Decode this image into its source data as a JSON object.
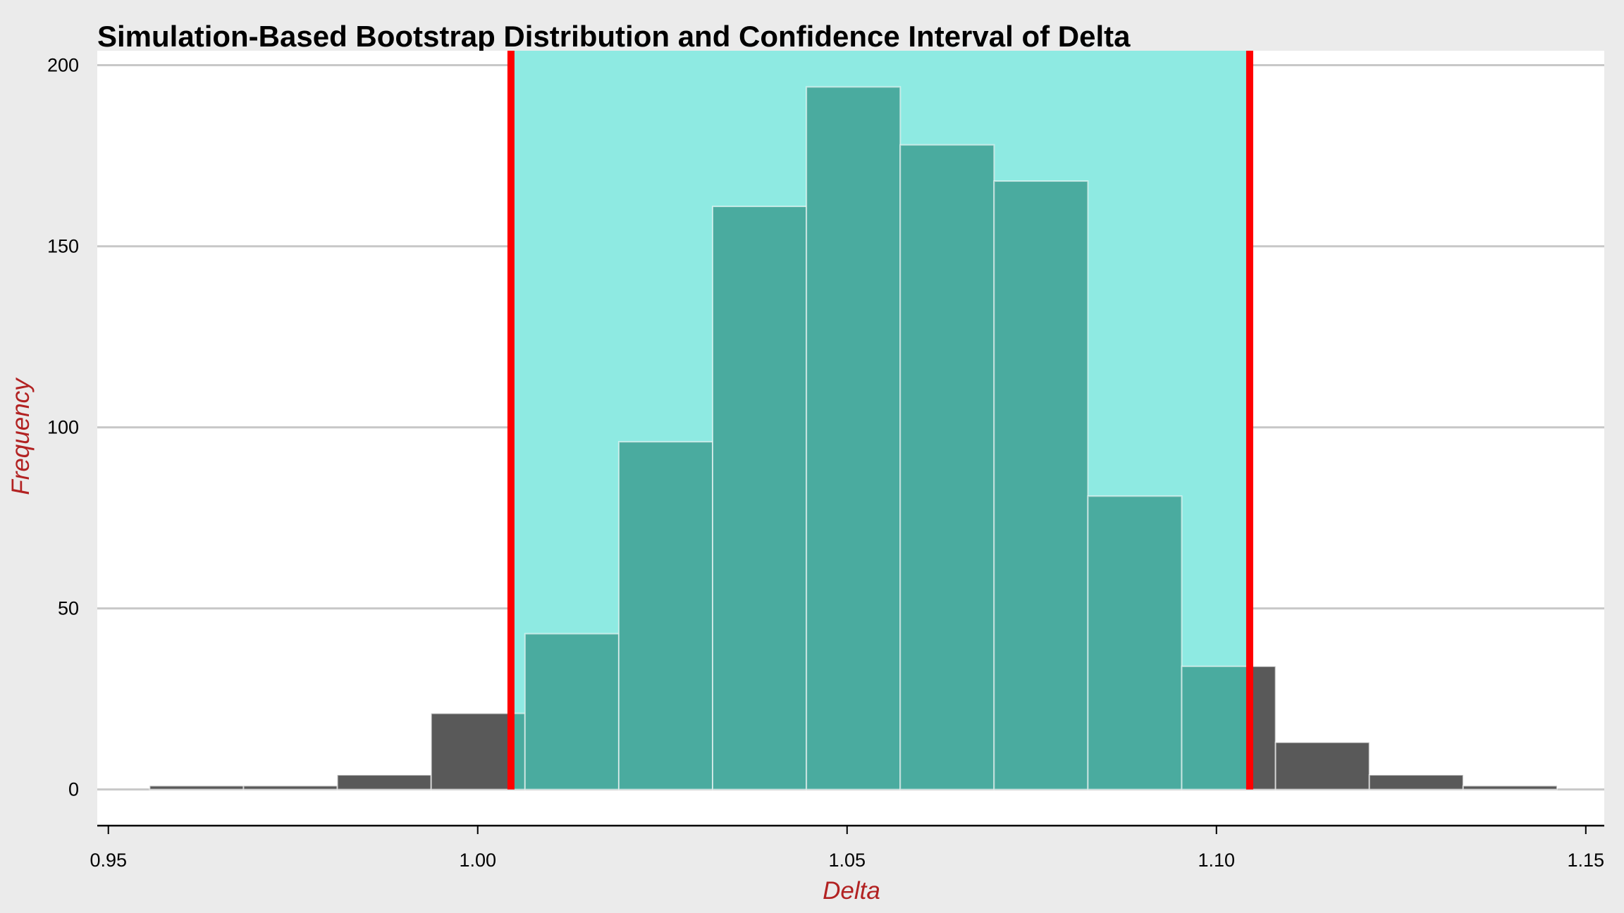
{
  "chart_data": {
    "type": "bar",
    "title": "Simulation-Based Bootstrap Distribution and Confidence Interval of Delta",
    "xlabel": "Delta",
    "ylabel": "Frequency",
    "xlim": [
      0.9485,
      1.1525
    ],
    "ylim": [
      -10,
      204
    ],
    "x_ticks": [
      0.95,
      1.0,
      1.05,
      1.1,
      1.15
    ],
    "x_tick_labels": [
      "0.95",
      "1.00",
      "1.05",
      "1.10",
      "1.15"
    ],
    "y_ticks": [
      0,
      50,
      100,
      150,
      200
    ],
    "y_tick_labels": [
      "0",
      "50",
      "100",
      "150",
      "200"
    ],
    "bins": [
      {
        "start": 0.9556,
        "end": 0.9683,
        "count": 1
      },
      {
        "start": 0.9683,
        "end": 0.981,
        "count": 1
      },
      {
        "start": 0.981,
        "end": 0.9937,
        "count": 4
      },
      {
        "start": 0.9937,
        "end": 1.0064,
        "count": 21
      },
      {
        "start": 1.0064,
        "end": 1.0191,
        "count": 43
      },
      {
        "start": 1.0191,
        "end": 1.0318,
        "count": 96
      },
      {
        "start": 1.0318,
        "end": 1.0445,
        "count": 161
      },
      {
        "start": 1.0445,
        "end": 1.0572,
        "count": 194
      },
      {
        "start": 1.0572,
        "end": 1.0699,
        "count": 178
      },
      {
        "start": 1.0699,
        "end": 1.0826,
        "count": 168
      },
      {
        "start": 1.0826,
        "end": 1.0953,
        "count": 81
      },
      {
        "start": 1.0953,
        "end": 1.108,
        "count": 34
      },
      {
        "start": 1.108,
        "end": 1.1207,
        "count": 13
      },
      {
        "start": 1.1207,
        "end": 1.1334,
        "count": 4
      },
      {
        "start": 1.1334,
        "end": 1.1461,
        "count": 1
      }
    ],
    "confidence_interval": [
      1.0045,
      1.1045
    ],
    "grid": "horizontal",
    "colors": {
      "background": "#ebebeb",
      "panel": "#ffffff",
      "grid": "#c8c8c8",
      "bar_outside": "#595959",
      "bar_inside": "#4aab9f",
      "ci_shade": "#8eeae2",
      "ci_line": "#ff0000",
      "axis_title": "#b22222"
    }
  }
}
